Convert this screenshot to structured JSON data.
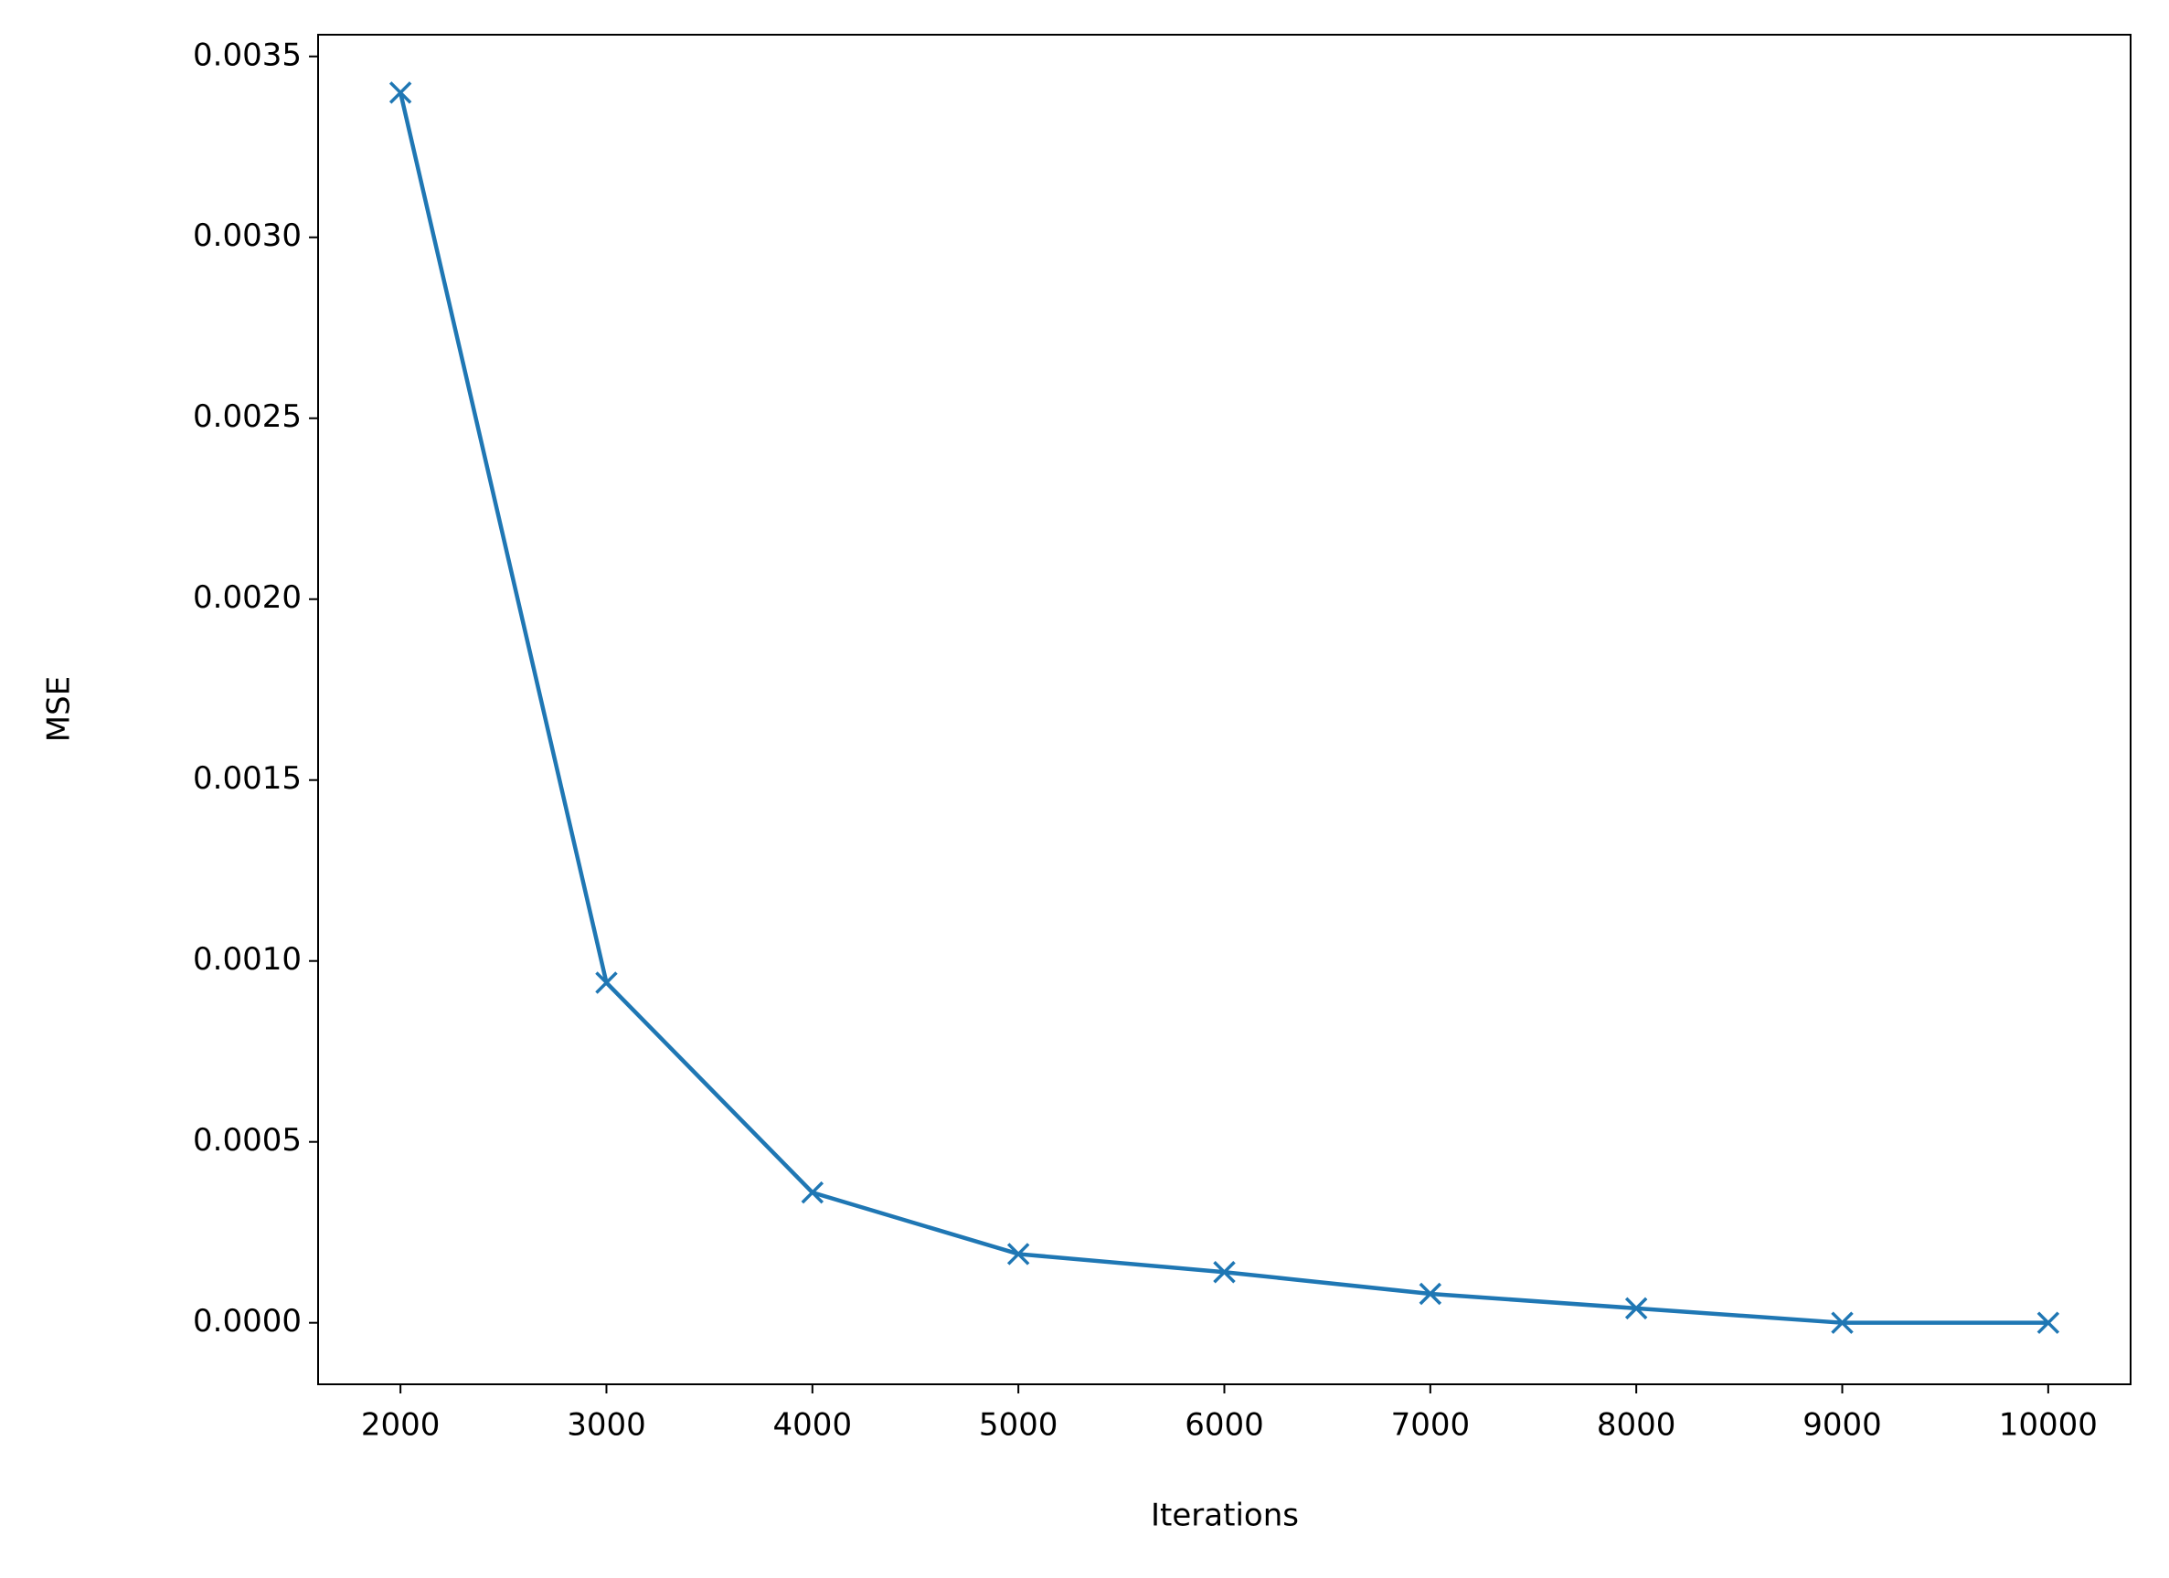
{
  "chart_data": {
    "type": "line",
    "x_label": "Iterations",
    "y_label": "MSE",
    "x": [
      2000,
      3000,
      4000,
      5000,
      6000,
      7000,
      8000,
      9000,
      10000
    ],
    "series": [
      {
        "color": "#1f77b4",
        "marker": "x",
        "values": [
          0.0034,
          0.00094,
          0.00036,
          0.00019,
          0.00014,
          8e-05,
          4e-05,
          0,
          0
        ]
      }
    ],
    "xlim": [
      1600,
      10400
    ],
    "xticks": [
      2000,
      3000,
      4000,
      5000,
      6000,
      7000,
      8000,
      9000,
      10000
    ],
    "ylim": [
      -0.00017,
      0.00356
    ],
    "yticks": [
      {
        "value": 0,
        "label": "0.0000"
      },
      {
        "value": 0.0005,
        "label": "0.0005"
      },
      {
        "value": 0.001,
        "label": "0.0010"
      },
      {
        "value": 0.0015,
        "label": "0.0015"
      },
      {
        "value": 0.002,
        "label": "0.0020"
      },
      {
        "value": 0.0025,
        "label": "0.0025"
      },
      {
        "value": 0.003,
        "label": "0.0030"
      },
      {
        "value": 0.0035,
        "label": "0.0035"
      }
    ],
    "grid": false
  }
}
